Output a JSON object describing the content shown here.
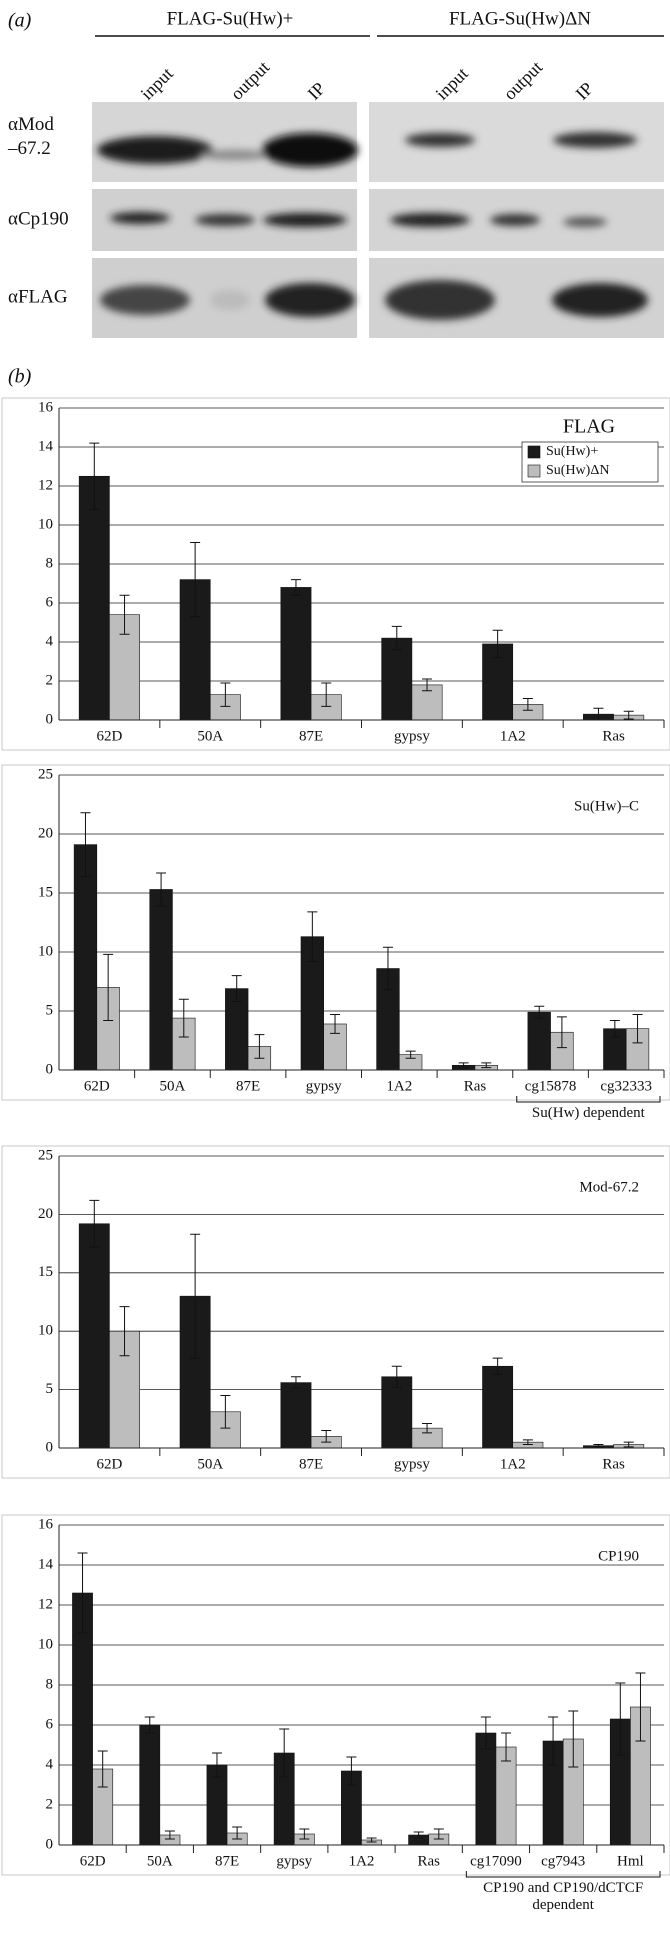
{
  "panel_a": {
    "label": "(a)",
    "groups": [
      {
        "title": "FLAG-Su(Hw)+",
        "lanes": [
          "input",
          "output",
          "IP"
        ]
      },
      {
        "title": "FLAG-Su(Hw)ΔN",
        "lanes": [
          "input",
          "output",
          "IP"
        ]
      }
    ],
    "rows": [
      "αMod –67.2",
      "αCp190",
      "αFLAG"
    ]
  },
  "panel_b": {
    "label": "(b)"
  },
  "chart_data": [
    {
      "type": "bar",
      "categories": [
        "62D",
        "50A",
        "87E",
        "gypsy",
        "1A2",
        "Ras"
      ],
      "series": [
        {
          "name": "Su(Hw)+",
          "color": "#1a1a1a",
          "values": [
            12.5,
            7.2,
            6.8,
            4.2,
            3.9,
            0.3
          ],
          "errors": [
            1.7,
            1.9,
            0.4,
            0.6,
            0.7,
            0.3
          ]
        },
        {
          "name": "Su(Hw)ΔN",
          "color": "#bdbdbd",
          "values": [
            5.4,
            1.3,
            1.3,
            1.8,
            0.8,
            0.25
          ],
          "errors": [
            1.0,
            0.6,
            0.6,
            0.3,
            0.3,
            0.2
          ]
        }
      ],
      "ylim": [
        0,
        16
      ],
      "yticks": [
        0,
        2,
        4,
        6,
        8,
        10,
        12,
        14,
        16
      ],
      "grid": true,
      "legend": "upper right",
      "legend_title": "FLAG"
    },
    {
      "type": "bar",
      "categories": [
        "62D",
        "50A",
        "87E",
        "gypsy",
        "1A2",
        "Ras",
        "cg15878",
        "cg32333"
      ],
      "series": [
        {
          "name": "Su(Hw)+",
          "color": "#1a1a1a",
          "values": [
            19.1,
            15.3,
            6.9,
            11.3,
            8.6,
            0.4,
            4.9,
            3.5
          ],
          "errors": [
            2.7,
            1.4,
            1.1,
            2.1,
            1.8,
            0.2,
            0.5,
            0.7
          ]
        },
        {
          "name": "Su(Hw)ΔN",
          "color": "#bdbdbd",
          "values": [
            7.0,
            4.4,
            2.0,
            3.9,
            1.3,
            0.4,
            3.2,
            3.5
          ],
          "errors": [
            2.8,
            1.6,
            1.0,
            0.8,
            0.3,
            0.2,
            1.3,
            1.2
          ]
        }
      ],
      "ylim": [
        0,
        25
      ],
      "yticks": [
        0,
        5,
        10,
        15,
        20,
        25
      ],
      "grid": true,
      "annotation": "Su(Hw)–C",
      "group": {
        "label": "Su(Hw) dependent",
        "members": [
          "cg15878",
          "cg32333"
        ]
      }
    },
    {
      "type": "bar",
      "categories": [
        "62D",
        "50A",
        "87E",
        "gypsy",
        "1A2",
        "Ras"
      ],
      "series": [
        {
          "name": "Su(Hw)+",
          "color": "#1a1a1a",
          "values": [
            19.2,
            13.0,
            5.6,
            6.1,
            7.0,
            0.2
          ],
          "errors": [
            2.0,
            5.3,
            0.5,
            0.9,
            0.7,
            0.1
          ]
        },
        {
          "name": "Su(Hw)ΔN",
          "color": "#bdbdbd",
          "values": [
            10.0,
            3.1,
            1.0,
            1.7,
            0.5,
            0.3
          ],
          "errors": [
            2.1,
            1.4,
            0.5,
            0.4,
            0.2,
            0.2
          ]
        }
      ],
      "ylim": [
        0,
        25
      ],
      "yticks": [
        0,
        5,
        10,
        15,
        20,
        25
      ],
      "grid": true,
      "annotation": "Mod-67.2"
    },
    {
      "type": "bar",
      "categories": [
        "62D",
        "50A",
        "87E",
        "gypsy",
        "1A2",
        "Ras",
        "cg17090",
        "cg7943",
        "Hml"
      ],
      "series": [
        {
          "name": "Su(Hw)+",
          "color": "#1a1a1a",
          "values": [
            12.6,
            6.0,
            4.0,
            4.6,
            3.7,
            0.5,
            5.6,
            5.2,
            6.3
          ],
          "errors": [
            2.0,
            0.4,
            0.6,
            1.2,
            0.7,
            0.15,
            0.8,
            1.2,
            1.8
          ]
        },
        {
          "name": "Su(Hw)ΔN",
          "color": "#bdbdbd",
          "values": [
            3.8,
            0.5,
            0.6,
            0.55,
            0.25,
            0.55,
            4.9,
            5.3,
            6.9
          ],
          "errors": [
            0.9,
            0.2,
            0.3,
            0.25,
            0.1,
            0.25,
            0.7,
            1.4,
            1.7
          ]
        }
      ],
      "ylim": [
        0,
        16
      ],
      "yticks": [
        0,
        2,
        4,
        6,
        8,
        10,
        12,
        14,
        16
      ],
      "grid": true,
      "annotation": "CP190",
      "group": {
        "label": "CP190 and CP190/dCTCF dependent",
        "members": [
          "cg17090",
          "cg7943",
          "Hml"
        ]
      }
    }
  ]
}
